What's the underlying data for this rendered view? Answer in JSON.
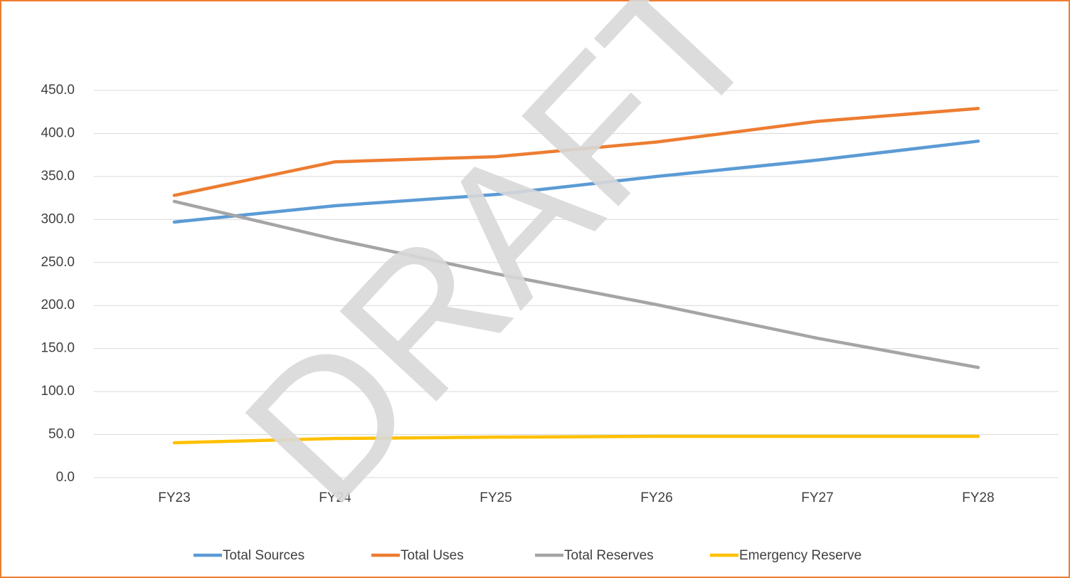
{
  "chart_data": {
    "type": "line",
    "watermark": "DRAFT",
    "categories": [
      "FY23",
      "FY24",
      "FY25",
      "FY26",
      "FY27",
      "FY28"
    ],
    "series": [
      {
        "name": "Total Sources",
        "color": "#5b9bd5",
        "values": [
          297,
          316,
          329,
          350,
          369,
          391
        ]
      },
      {
        "name": "Total Uses",
        "color": "#ed7d31",
        "values": [
          328,
          367,
          373,
          390,
          414,
          429
        ]
      },
      {
        "name": "Total Reserves",
        "color": "#a5a5a5",
        "values": [
          321,
          277,
          237,
          201,
          162,
          128
        ]
      },
      {
        "name": "Emergency Reserve",
        "color": "#ffc000",
        "values": [
          40.5,
          45.5,
          47,
          48,
          48,
          48
        ]
      }
    ],
    "ylim": [
      0,
      450
    ],
    "yticks": [
      {
        "value": 0,
        "label": "0.0"
      },
      {
        "value": 50,
        "label": "50.0"
      },
      {
        "value": 100,
        "label": "100.0"
      },
      {
        "value": 150,
        "label": "150.0"
      },
      {
        "value": 200,
        "label": "200.0"
      },
      {
        "value": 250,
        "label": "250.0"
      },
      {
        "value": 300,
        "label": "300.0"
      },
      {
        "value": 350,
        "label": "350.0"
      },
      {
        "value": 400,
        "label": "400.0"
      },
      {
        "value": 450,
        "label": "450.0"
      }
    ],
    "grid": true,
    "legend": "bottom"
  }
}
